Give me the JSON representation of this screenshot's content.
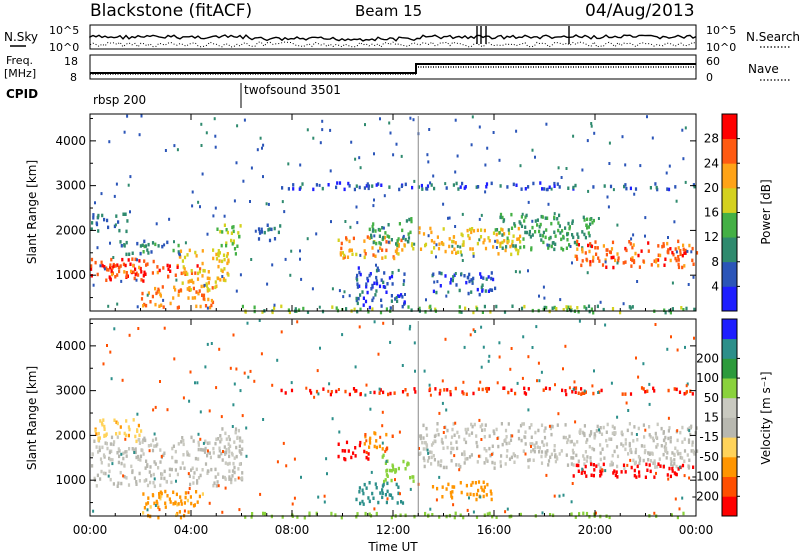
{
  "header": {
    "station": "Blackstone (fitACF)",
    "beam": "Beam 15",
    "date": "04/Aug/2013"
  },
  "noise_panel": {
    "left_label": "N.Sky",
    "right_label": "N.Search",
    "y_ticks": [
      "10^5",
      "10^0"
    ]
  },
  "freq_panel": {
    "left_label_1": "Freq.",
    "left_label_2": "[MHz]",
    "right_label": "Nave",
    "left_ticks": [
      "18",
      "8"
    ],
    "right_ticks": [
      "60",
      "0"
    ]
  },
  "cpid": {
    "label": "CPID",
    "segments": [
      {
        "name": "rbsp 200",
        "start_h": 0
      },
      {
        "name": "twofsound 3501",
        "start_h": 6
      }
    ]
  },
  "colors": {
    "power": [
      "#1e1eff",
      "#2b55b8",
      "#2f8a6e",
      "#44b045",
      "#d4d11f",
      "#ffa317",
      "#ff5a11",
      "#ff0000"
    ],
    "velocity": [
      "#ff0000",
      "#ff4f00",
      "#ff9500",
      "#ffd35a",
      "#b8b8b0",
      "#c9c9c0",
      "#8ad23c",
      "#2c9a3b",
      "#2c8f8a",
      "#1e1eff"
    ]
  },
  "chart_data": [
    {
      "type": "heatmap",
      "quantity": "Power",
      "ylabel": "Slant Range [km]",
      "y_ticks": [
        1000,
        2000,
        3000,
        4000
      ],
      "ylim": [
        200,
        4600
      ],
      "xlim": [
        0,
        24
      ],
      "colorbar_label": "Power [dB]",
      "colorbar_ticks": [
        4,
        8,
        12,
        16,
        20,
        24,
        28
      ],
      "colorbar_range": [
        0,
        32
      ],
      "bands": [
        {
          "t0": 0.0,
          "t1": 2.5,
          "r0": 900,
          "r1": 1400,
          "v": 28
        },
        {
          "t0": 0.5,
          "t1": 4.5,
          "r0": 1000,
          "r1": 1300,
          "v": 26
        },
        {
          "t0": 2.0,
          "t1": 5.0,
          "r0": 300,
          "r1": 800,
          "v": 24
        },
        {
          "t0": 3.5,
          "t1": 5.5,
          "r0": 700,
          "r1": 1600,
          "v": 20
        },
        {
          "t0": 5.0,
          "t1": 6.0,
          "r0": 1500,
          "r1": 2200,
          "v": 16
        },
        {
          "t0": 0.0,
          "t1": 1.5,
          "r0": 2000,
          "r1": 2400,
          "v": 8
        },
        {
          "t0": 1.0,
          "t1": 3.5,
          "r0": 1500,
          "r1": 1800,
          "v": 10
        },
        {
          "t0": 6.5,
          "t1": 7.5,
          "r0": 1800,
          "r1": 2200,
          "v": 8
        },
        {
          "t0": 9.8,
          "t1": 12.8,
          "r0": 1400,
          "r1": 1900,
          "v": 22
        },
        {
          "t0": 11.0,
          "t1": 12.8,
          "r0": 1700,
          "r1": 2300,
          "v": 12
        },
        {
          "t0": 10.5,
          "t1": 12.5,
          "r0": 300,
          "r1": 1200,
          "v": 6
        },
        {
          "t0": 13.0,
          "t1": 17.0,
          "r0": 1500,
          "r1": 2100,
          "v": 20
        },
        {
          "t0": 16.0,
          "t1": 20.0,
          "r0": 1600,
          "r1": 2400,
          "v": 12
        },
        {
          "t0": 19.0,
          "t1": 24.0,
          "r0": 1200,
          "r1": 1800,
          "v": 26
        },
        {
          "t0": 13.5,
          "t1": 16.0,
          "r0": 600,
          "r1": 1100,
          "v": 6
        },
        {
          "t0": 6.0,
          "t1": 24.0,
          "r0": 200,
          "r1": 350,
          "v": 14
        },
        {
          "t0": 7.5,
          "t1": 24.0,
          "r0": 2950,
          "r1": 3100,
          "v": 6
        }
      ]
    },
    {
      "type": "heatmap",
      "quantity": "Velocity",
      "xlabel": "Time UT",
      "ylabel": "Slant Range [km]",
      "x_ticks": [
        "00:00",
        "04:00",
        "08:00",
        "12:00",
        "16:00",
        "20:00",
        "00:00"
      ],
      "y_ticks": [
        1000,
        2000,
        3000,
        4000
      ],
      "ylim": [
        200,
        4600
      ],
      "xlim": [
        0,
        24
      ],
      "colorbar_label": "Velocity [m s⁻¹]",
      "colorbar_ticks": [
        -200,
        -100,
        -50,
        -15,
        15,
        50,
        100,
        200
      ],
      "colorbar_range": [
        -250,
        250
      ],
      "bands": [
        {
          "t0": 0.0,
          "t1": 6.0,
          "r0": 900,
          "r1": 2000,
          "v": 0
        },
        {
          "t0": 2.0,
          "t1": 4.5,
          "r0": 200,
          "r1": 800,
          "v": -60
        },
        {
          "t0": 0.0,
          "t1": 2.0,
          "r0": 1900,
          "r1": 2400,
          "v": -40
        },
        {
          "t0": 5.0,
          "t1": 6.0,
          "r0": 1600,
          "r1": 2200,
          "v": 0
        },
        {
          "t0": 9.8,
          "t1": 11.0,
          "r0": 1500,
          "r1": 1900,
          "v": -220
        },
        {
          "t0": 10.8,
          "t1": 12.0,
          "r0": 1700,
          "r1": 2100,
          "v": -90
        },
        {
          "t0": 11.5,
          "t1": 12.8,
          "r0": 1000,
          "r1": 1600,
          "v": 30
        },
        {
          "t0": 10.5,
          "t1": 12.5,
          "r0": 500,
          "r1": 1000,
          "v": 150
        },
        {
          "t0": 13.0,
          "t1": 24.0,
          "r0": 1300,
          "r1": 2300,
          "v": 0
        },
        {
          "t0": 19.0,
          "t1": 24.0,
          "r0": 1100,
          "r1": 1400,
          "v": -230
        },
        {
          "t0": 13.5,
          "t1": 16.0,
          "r0": 600,
          "r1": 1000,
          "v": -70
        },
        {
          "t0": 6.0,
          "t1": 24.0,
          "r0": 200,
          "r1": 300,
          "v": 30
        },
        {
          "t0": 7.5,
          "t1": 24.0,
          "r0": 2950,
          "r1": 3100,
          "v": -200
        }
      ]
    }
  ]
}
